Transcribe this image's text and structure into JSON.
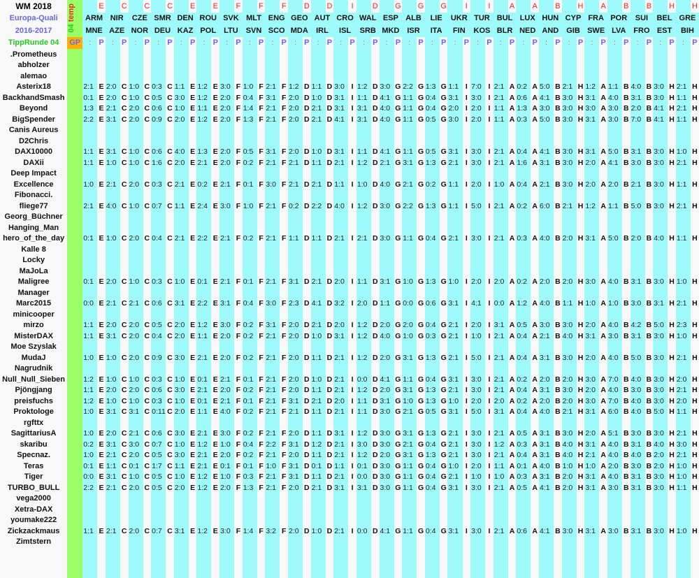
{
  "header": {
    "title": "WM 2018",
    "subtitle1": "Europa-Quali",
    "subtitle2": "2016-2017",
    "round": "TippRunde 04",
    "vertical_num": "04",
    "vertical_word": "temp",
    "gp_label": "GP",
    "colon": ":",
    "p_label": "P"
  },
  "colors": {
    "cyan": "#9ffbfb",
    "green": "#99ff66",
    "orange": "#ffb000",
    "red": "#ff2222",
    "blue": "#6666ff"
  },
  "matches": [
    {
      "group": "E",
      "home": "ARM",
      "away": "MNE"
    },
    {
      "group": "C",
      "home": "NIR",
      "away": "AZE"
    },
    {
      "group": "C",
      "home": "CZE",
      "away": "NOR"
    },
    {
      "group": "C",
      "home": "SMR",
      "away": "DEU"
    },
    {
      "group": "E",
      "home": "DEN",
      "away": "KAZ"
    },
    {
      "group": "E",
      "home": "ROU",
      "away": "POL"
    },
    {
      "group": "F",
      "home": "SVK",
      "away": "LTU"
    },
    {
      "group": "F",
      "home": "MLT",
      "away": "SVN"
    },
    {
      "group": "F",
      "home": "ENG",
      "away": "SCO"
    },
    {
      "group": "D",
      "home": "GEO",
      "away": "MDA"
    },
    {
      "group": "D",
      "home": "AUT",
      "away": "IRL"
    },
    {
      "group": "I",
      "home": "CRO",
      "away": "ISL"
    },
    {
      "group": "D",
      "home": "WAL",
      "away": "SRB"
    },
    {
      "group": "G",
      "home": "ESP",
      "away": "MKD"
    },
    {
      "group": "G",
      "home": "ALB",
      "away": "ISR"
    },
    {
      "group": "G",
      "home": "LIE",
      "away": "ITA"
    },
    {
      "group": "I",
      "home": "UKR",
      "away": "FIN"
    },
    {
      "group": "I",
      "home": "TUR",
      "away": "KOS"
    },
    {
      "group": "A",
      "home": "BUL",
      "away": "BLR"
    },
    {
      "group": "A",
      "home": "LUX",
      "away": "NED"
    },
    {
      "group": "B",
      "home": "HUN",
      "away": "AND"
    },
    {
      "group": "H",
      "home": "CYP",
      "away": "GIB"
    },
    {
      "group": "A",
      "home": "FRA",
      "away": "SWE"
    },
    {
      "group": "B",
      "home": "POR",
      "away": "LVA"
    },
    {
      "group": "B",
      "home": "SUI",
      "away": "FRO"
    },
    {
      "group": "H",
      "home": "BEL",
      "away": "EST"
    },
    {
      "group": "H",
      "home": "GRE",
      "away": "BIH"
    }
  ],
  "players": [
    {
      "name": ".Prometheus",
      "tips": []
    },
    {
      "name": "abholzer",
      "tips": []
    },
    {
      "name": "alemao",
      "tips": []
    },
    {
      "name": "Asterix18",
      "tips": [
        "2:1",
        "2:0",
        "1:0",
        "0:3",
        "1:1",
        "1:2",
        "3:0",
        "1:0",
        "2:1",
        "1:2",
        "1:1",
        "3:0",
        "1:2",
        "3:0",
        "2:2",
        "1:3",
        "1:1",
        "7:0",
        "2:1",
        "0:2",
        "5:0",
        "2:1",
        "1:2",
        "1:1",
        "4:0",
        "3:0",
        "2:1"
      ]
    },
    {
      "name": "BackhandSmash",
      "tips": [
        "0:1",
        "2:0",
        "1:0",
        "0:5",
        "3:0",
        "1:2",
        "2:0",
        "0:4",
        "3:1",
        "2:0",
        "1:0",
        "3:1",
        "1:1",
        "4:1",
        "1:1",
        "0:4",
        "3:1",
        "3:0",
        "2:1",
        "0:6",
        "4:1",
        "3:0",
        "3:1",
        "4:0",
        "3:1",
        "3:0",
        "1:1"
      ]
    },
    {
      "name": "Beyond",
      "tips": [
        "1:3",
        "2:1",
        "2:0",
        "0:6",
        "1:0",
        "1:1",
        "2:0",
        "1:4",
        "2:1",
        "2:0",
        "2:1",
        "3:1",
        "3:1",
        "4:0",
        "1:1",
        "0:4",
        "2:0",
        "2:0",
        "1:1",
        "1:3",
        "3:0",
        "3:0",
        "3:0",
        "3:0",
        "2:0",
        "4:1",
        "2:1"
      ]
    },
    {
      "name": "BigSpender",
      "tips": [
        "2:2",
        "3:1",
        "2:0",
        "0:9",
        "2:0",
        "1:2",
        "2:0",
        "1:3",
        "2:1",
        "2:0",
        "2:1",
        "4:1",
        "3:1",
        "4:0",
        "1:1",
        "0:5",
        "3:0",
        "2:0",
        "1:1",
        "0:3",
        "5:0",
        "3:0",
        "3:1",
        "3:0",
        "7:0",
        "4:1",
        "1:1"
      ]
    },
    {
      "name": "Canis Aureus",
      "tips": []
    },
    {
      "name": "D2Chris",
      "tips": []
    },
    {
      "name": "DAX10000",
      "tips": [
        "1:1",
        "3:1",
        "1:0",
        "0:6",
        "4:0",
        "1:3",
        "2:0",
        "0:5",
        "3:1",
        "2:0",
        "1:0",
        "3:1",
        "1:1",
        "4:1",
        "1:1",
        "0:5",
        "3:1",
        "3:0",
        "2:1",
        "0:4",
        "4:1",
        "3:0",
        "3:1",
        "5:0",
        "3:1",
        "3:0",
        "1:0"
      ]
    },
    {
      "name": "DAXii",
      "tips": [
        "1:1",
        "1:0",
        "1:0",
        "1:6",
        "2:0",
        "2:1",
        "2:0",
        "0:2",
        "2:1",
        "2:1",
        "1:1",
        "2:1",
        "1:2",
        "2:1",
        "3:1",
        "1:3",
        "2:1",
        "3:0",
        "2:1",
        "1:6",
        "3:1",
        "3:0",
        "2:0",
        "4:1",
        "3:0",
        "3:0",
        "2:1"
      ]
    },
    {
      "name": "Deep Impact",
      "tips": []
    },
    {
      "name": "Excellence",
      "tips": [
        "1:0",
        "2:1",
        "2:0",
        "0:3",
        "2:1",
        "0:2",
        "2:1",
        "0:1",
        "3:0",
        "2:1",
        "2:1",
        "1:1",
        "1:0",
        "4:0",
        "2:1",
        "0:2",
        "1:1",
        "2:0",
        "1:0",
        "0:4",
        "2:1",
        "3:0",
        "2:0",
        "2:0",
        "2:1",
        "3:0",
        "1:1"
      ]
    },
    {
      "name": "Fibonacci.",
      "tips": []
    },
    {
      "name": "fliege77",
      "tips": [
        "2:1",
        "4:0",
        "1:0",
        "0:7",
        "1:1",
        "2:4",
        "3:0",
        "1:0",
        "2:1",
        "0:2",
        "2:2",
        "4:0",
        "1:2",
        "3:0",
        "2:2",
        "1:3",
        "1:1",
        "5:0",
        "2:1",
        "0:2",
        "6:0",
        "2:1",
        "1:2",
        "1:1",
        "5:0",
        "3:0",
        "2:1"
      ]
    },
    {
      "name": "Georg_Büchner",
      "tips": []
    },
    {
      "name": "Hanging_Man",
      "tips": []
    },
    {
      "name": "hero_of_the_day",
      "tips": [
        "0:1",
        "1:0",
        "2:0",
        "0:4",
        "2:1",
        "2:2",
        "2:1",
        "0:2",
        "2:1",
        "1:1",
        "1:1",
        "2:1",
        "2:1",
        "3:0",
        "1:1",
        "0:4",
        "2:1",
        "3:0",
        "2:1",
        "0:3",
        "4:0",
        "2:0",
        "3:1",
        "5:0",
        "2:0",
        "4:0",
        "1:1"
      ]
    },
    {
      "name": "Kalle 8",
      "tips": []
    },
    {
      "name": "Locky",
      "tips": []
    },
    {
      "name": "MaJoLa",
      "tips": []
    },
    {
      "name": "Maligree",
      "tips": [
        "0:1",
        "2:0",
        "1:0",
        "0:3",
        "1:0",
        "0:1",
        "2:1",
        "0:1",
        "2:1",
        "3:1",
        "2:1",
        "2:0",
        "1:1",
        "3:1",
        "1:0",
        "1:3",
        "1:0",
        "2:0",
        "2:0",
        "0:2",
        "2:0",
        "2:0",
        "3:0",
        "4:0",
        "3:1",
        "3:0",
        "1:0"
      ]
    },
    {
      "name": "Manager",
      "tips": []
    },
    {
      "name": "Marc2015",
      "tips": [
        "0:0",
        "2:1",
        "2:1",
        "0:6",
        "3:1",
        "2:2",
        "3:1",
        "0:4",
        "3:0",
        "2:3",
        "4:1",
        "3:2",
        "2:0",
        "1:1",
        "0:0",
        "0:6",
        "3:1",
        "4:1",
        "0:0",
        "1:2",
        "4:0",
        "1:1",
        "1:0",
        "1:0",
        "3:0",
        "3:1",
        "2:1"
      ]
    },
    {
      "name": "minicooper",
      "tips": []
    },
    {
      "name": "mirzo",
      "tips": [
        "1:1",
        "2:0",
        "2:0",
        "0:5",
        "2:0",
        "1:2",
        "3:0",
        "0:2",
        "3:1",
        "2:0",
        "2:1",
        "2:0",
        "1:2",
        "2:0",
        "2:0",
        "0:4",
        "2:1",
        "2:0",
        "3:1",
        "0:5",
        "3:0",
        "3:0",
        "2:0",
        "4:0",
        "4:2",
        "5:0",
        "2:3"
      ]
    },
    {
      "name": "MisterDAX",
      "tips": [
        "1:1",
        "3:1",
        "2:0",
        "0:4",
        "2:0",
        "1:1",
        "2:0",
        "0:2",
        "2:1",
        "2:0",
        "1:0",
        "3:1",
        "1:2",
        "4:0",
        "1:0",
        "0:3",
        "2:1",
        "1:0",
        "2:1",
        "0:4",
        "2:1",
        "4:0",
        "3:1",
        "3:0",
        "3:1",
        "3:0",
        "1:0"
      ]
    },
    {
      "name": "Moe Szyslak",
      "tips": []
    },
    {
      "name": "MudaJ",
      "tips": [
        "1:0",
        "1:0",
        "2:0",
        "0:9",
        "3:0",
        "2:1",
        "2:0",
        "0:2",
        "2:1",
        "2:0",
        "1:1",
        "2:1",
        "1:2",
        "2:0",
        "3:1",
        "1:3",
        "2:1",
        "5:0",
        "2:1",
        "0:4",
        "3:1",
        "3:0",
        "2:0",
        "4:0",
        "5:0",
        "3:0",
        "2:1"
      ]
    },
    {
      "name": "Nagrudnik",
      "tips": []
    },
    {
      "name": "Null_Null_Sieben",
      "tips": [
        "1:2",
        "1:0",
        "1:0",
        "0:3",
        "1:0",
        "0:1",
        "2:1",
        "0:1",
        "2:1",
        "2:0",
        "1:0",
        "2:1",
        "0:0",
        "4:1",
        "1:1",
        "0:4",
        "3:1",
        "3:0",
        "2:1",
        "0:2",
        "2:0",
        "2:0",
        "3:0",
        "7:0",
        "4:0",
        "3:0",
        "2:0"
      ]
    },
    {
      "name": "Pjöngjang",
      "tips": [
        "1:1",
        "2:0",
        "2:0",
        "0:6",
        "3:0",
        "2:1",
        "2:0",
        "0:2",
        "2:1",
        "2:0",
        "1:1",
        "2:1",
        "1:2",
        "2:0",
        "3:1",
        "1:3",
        "2:1",
        "3:0",
        "2:1",
        "0:4",
        "3:1",
        "3:0",
        "2:0",
        "4:0",
        "3:0",
        "3:0",
        "2:1"
      ]
    },
    {
      "name": "preisfuchs",
      "tips": [
        "1:2",
        "1:0",
        "1:0",
        "0:3",
        "1:0",
        "0:1",
        "2:1",
        "0:1",
        "2:1",
        "3:1",
        "2:1",
        "2:0",
        "1:1",
        "3:1",
        "1:0",
        "1:3",
        "1:0",
        "2:0",
        "2:0",
        "0:2",
        "2:0",
        "2:0",
        "3:0",
        "7:0",
        "4:0",
        "3:0",
        "2:0"
      ]
    },
    {
      "name": "Proktologe",
      "tips": [
        "1:0",
        "3:1",
        "3:1",
        "0:11",
        "2:0",
        "1:1",
        "4:0",
        "0:2",
        "2:1",
        "2:1",
        "1:1",
        "2:1",
        "1:1",
        "3:0",
        "2:1",
        "0:5",
        "3:1",
        "5:0",
        "3:1",
        "0:4",
        "4:0",
        "2:1",
        "3:1",
        "6:0",
        "4:0",
        "5:0",
        "1:1"
      ]
    },
    {
      "name": "rgfttx",
      "tips": []
    },
    {
      "name": "SagittariusA",
      "tips": [
        "1:0",
        "2:0",
        "2:1",
        "0:6",
        "3:0",
        "2:1",
        "3:0",
        "0:2",
        "2:1",
        "2:0",
        "1:1",
        "3:1",
        "1:2",
        "3:0",
        "3:1",
        "1:3",
        "2:1",
        "3:0",
        "2:1",
        "0:5",
        "3:1",
        "3:0",
        "2:0",
        "5:1",
        "3:0",
        "3:0",
        "2:1"
      ]
    },
    {
      "name": "skaribu",
      "tips": [
        "0:2",
        "3:1",
        "3:0",
        "0:7",
        "1:0",
        "1:2",
        "1:0",
        "0:4",
        "2:2",
        "3:1",
        "1:2",
        "2:1",
        "3:0",
        "3:0",
        "2:1",
        "0:4",
        "2:1",
        "3:0",
        "1:2",
        "0:3",
        "3:1",
        "4:0",
        "3:1",
        "4:0",
        "3:1",
        "4:0",
        "3:0"
      ]
    },
    {
      "name": "Specnaz.",
      "tips": [
        "1:0",
        "2:1",
        "2:0",
        "0:5",
        "3:0",
        "2:1",
        "2:0",
        "0:2",
        "2:1",
        "2:0",
        "1:1",
        "2:1",
        "1:2",
        "2:0",
        "3:1",
        "1:3",
        "2:1",
        "3:0",
        "2:1",
        "0:4",
        "3:1",
        "4:0",
        "2:1",
        "4:0",
        "4:0",
        "2:0",
        "2:1"
      ]
    },
    {
      "name": "Teras",
      "tips": [
        "0:1",
        "1:1",
        "0:1",
        "1:7",
        "1:1",
        "2:1",
        "0:1",
        "0:1",
        "1:0",
        "3:1",
        "0:1",
        "1:1",
        "0:1",
        "3:0",
        "1:1",
        "0:4",
        "1:0",
        "2:0",
        "1:1",
        "0:1",
        "4:0",
        "1:0",
        "1:0",
        "2:0",
        "3:0",
        "2:0",
        "1:0"
      ]
    },
    {
      "name": "Tiger",
      "tips": [
        "0:0",
        "3:1",
        "1:0",
        "0:5",
        "1:0",
        "1:2",
        "1:0",
        "0:3",
        "2:1",
        "3:1",
        "1:1",
        "2:1",
        "0:0",
        "3:0",
        "1:1",
        "0:4",
        "2:1",
        "1:0",
        "1:0",
        "0:3",
        "3:1",
        "2:0",
        "3:1",
        "4:0",
        "3:1",
        "3:0",
        "1:0"
      ]
    },
    {
      "name": "TURBO_BULL",
      "tips": [
        "2:2",
        "2:1",
        "2:0",
        "0:5",
        "2:0",
        "1:2",
        "2:0",
        "1:3",
        "2:1",
        "2:0",
        "2:1",
        "3:1",
        "3:1",
        "3:0",
        "1:1",
        "0:4",
        "3:1",
        "3:0",
        "2:1",
        "0:5",
        "4:1",
        "2:0",
        "3:1",
        "3:0",
        "3:1",
        "3:0",
        "1:1"
      ]
    },
    {
      "name": "vega2000",
      "tips": []
    },
    {
      "name": "Xetra-DAX",
      "tips": []
    },
    {
      "name": "youmake222",
      "tips": []
    },
    {
      "name": "Zickzackmaus",
      "tips": [
        "1:1",
        "2:1",
        "2:0",
        "0:7",
        "3:1",
        "1:2",
        "3:0",
        "1:4",
        "3:2",
        "2:0",
        "1:0",
        "2:1",
        "0:0",
        "4:1",
        "1:1",
        "0:4",
        "3:1",
        "3:0",
        "2:1",
        "0:6",
        "4:1",
        "3:0",
        "3:1",
        "3:0",
        "3:1",
        "3:0",
        "1:0"
      ]
    },
    {
      "name": "Zimtstern",
      "tips": []
    }
  ]
}
